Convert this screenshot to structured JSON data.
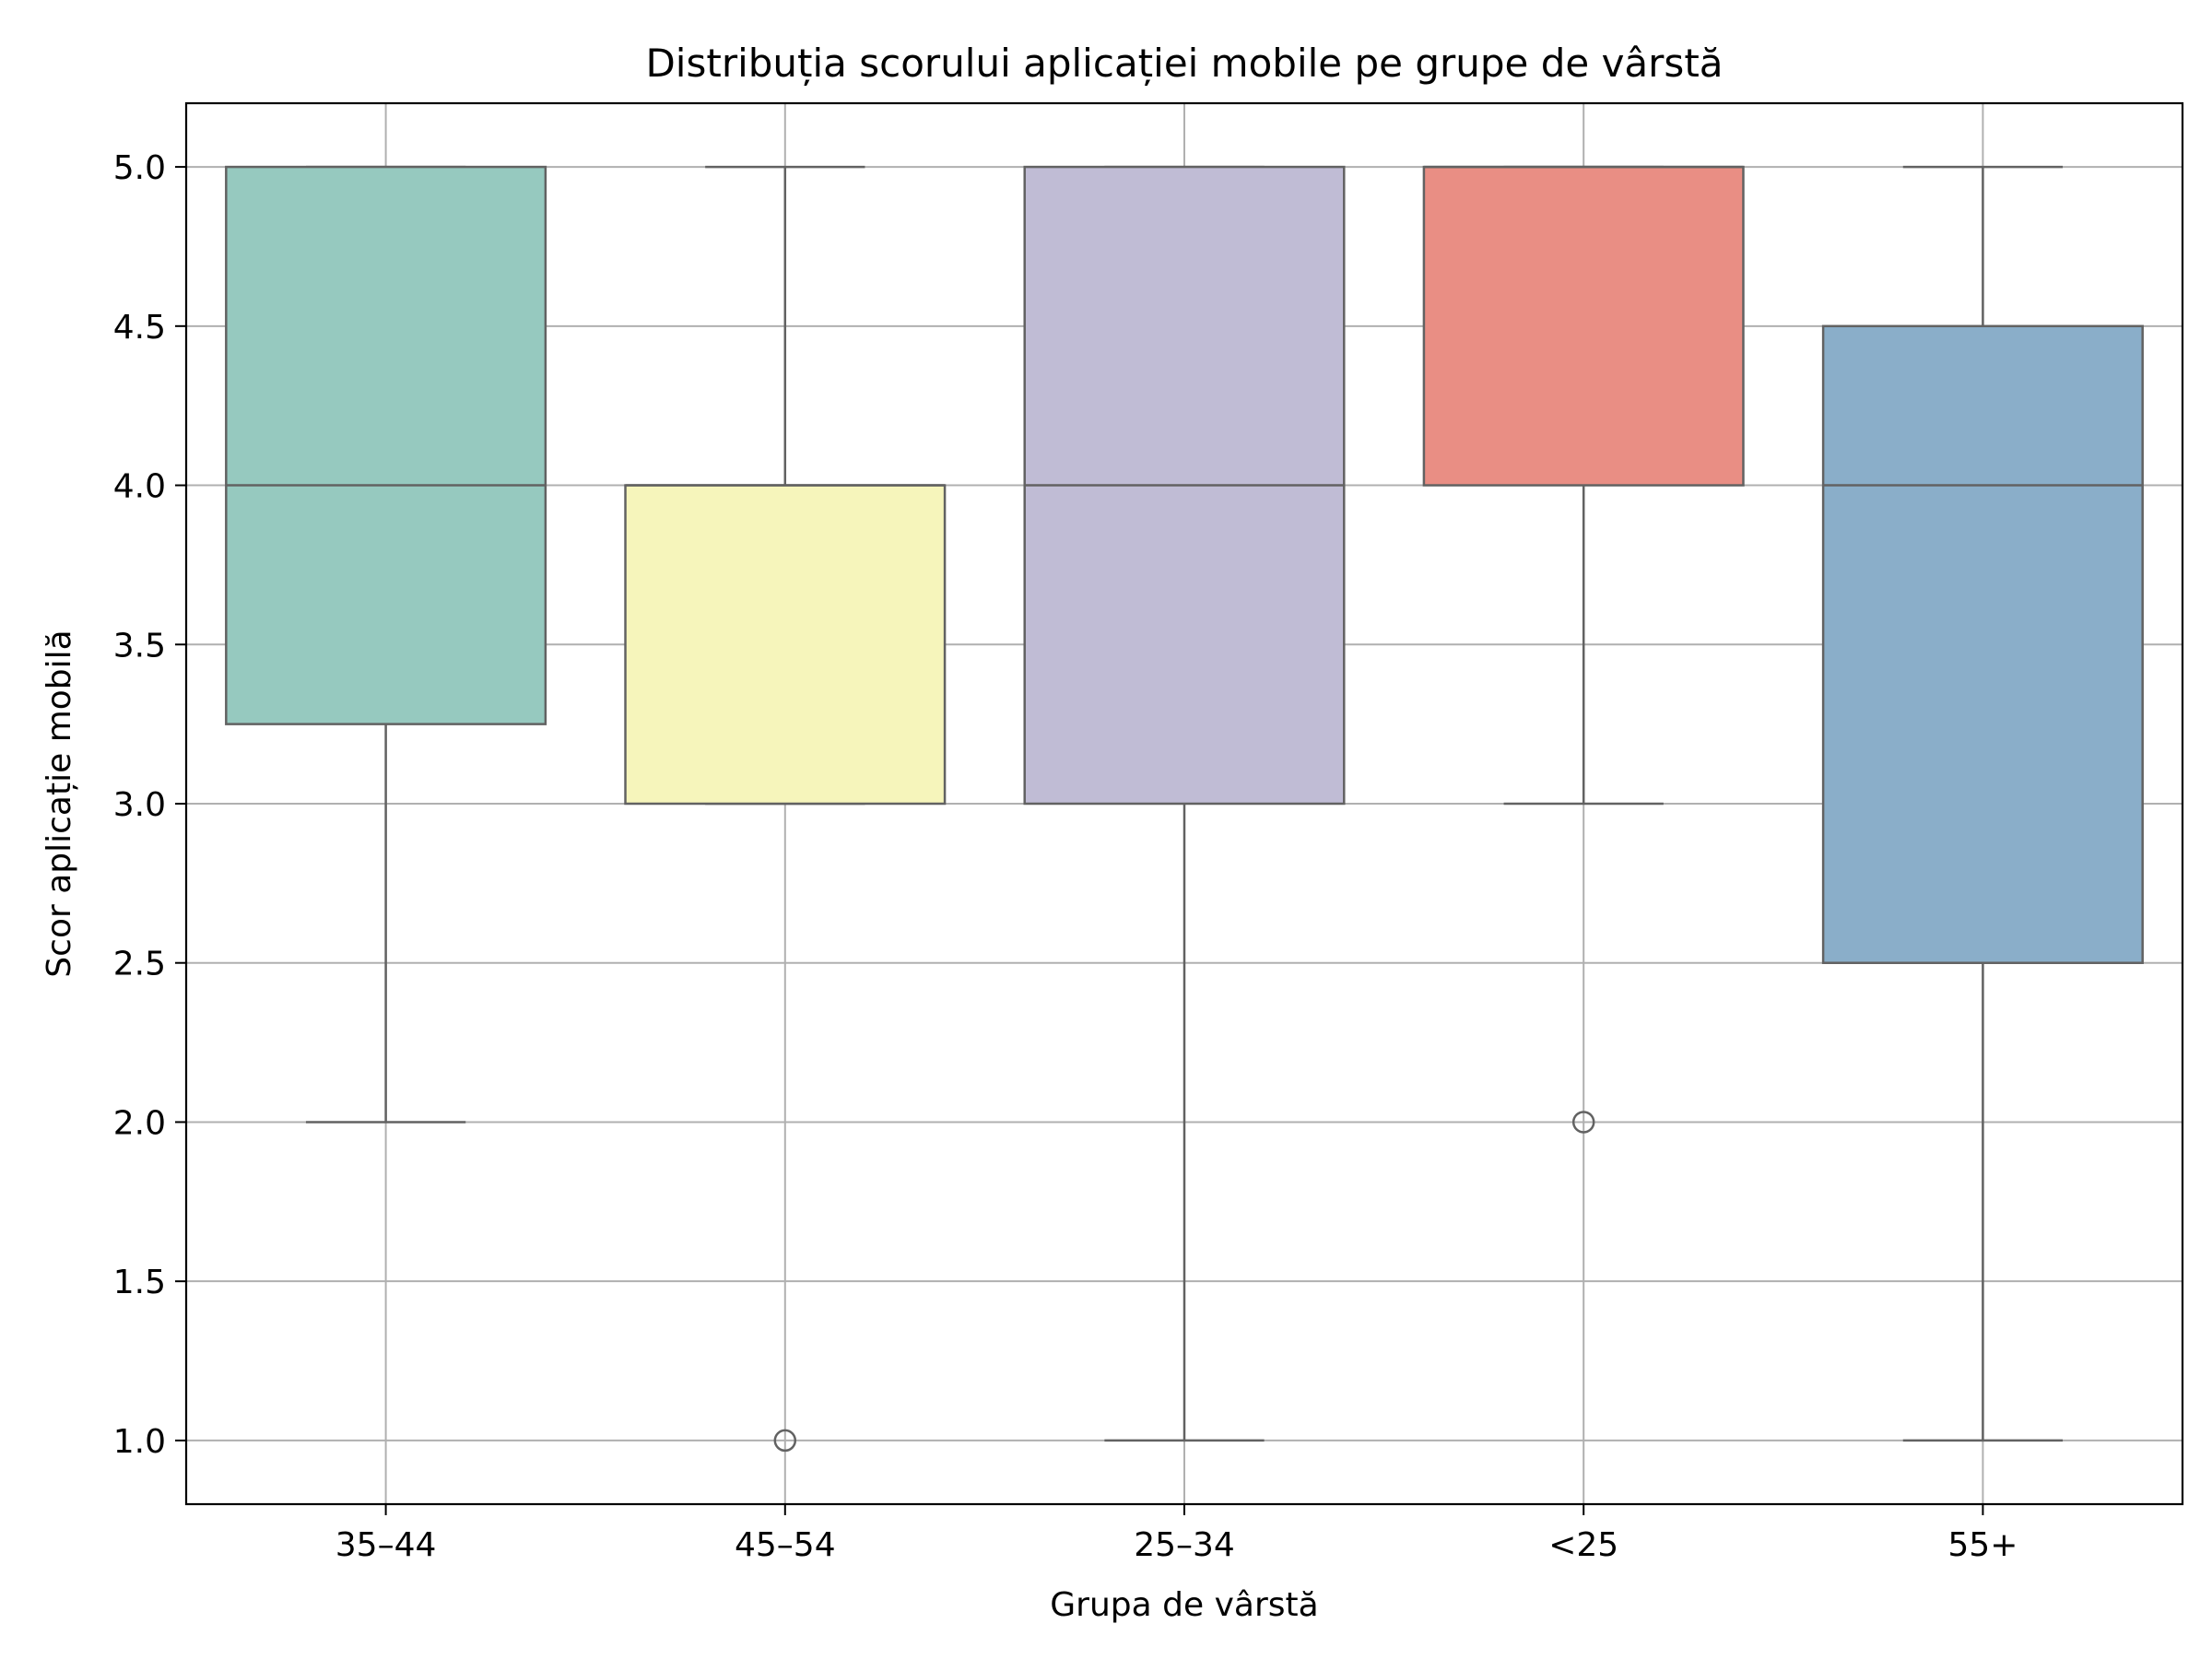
{
  "chart_data": {
    "type": "box",
    "title": "Distribuția scorului aplicației mobile pe grupe de vârstă",
    "xlabel": "Grupa de vârstă",
    "ylabel": "Scor aplicație mobilă",
    "ylim": [
      0.8,
      5.2
    ],
    "yticks": [
      "1.0",
      "1.5",
      "2.0",
      "2.5",
      "3.0",
      "3.5",
      "4.0",
      "4.5",
      "5.0"
    ],
    "grid": true,
    "categories": [
      "35–44",
      "45–54",
      "25–34",
      "<25",
      "55+"
    ],
    "boxes": [
      {
        "category": "35–44",
        "whisker_low": 2.0,
        "q1": 3.25,
        "median": 4.0,
        "q3": 5.0,
        "whisker_high": 5.0,
        "outliers": [],
        "color": "#96c9bf"
      },
      {
        "category": "45–54",
        "whisker_low": 3.0,
        "q1": 3.0,
        "median": 4.0,
        "q3": 4.0,
        "whisker_high": 5.0,
        "outliers": [
          1.0
        ],
        "color": "#f6f5bb"
      },
      {
        "category": "25–34",
        "whisker_low": 1.0,
        "q1": 3.0,
        "median": 4.0,
        "q3": 5.0,
        "whisker_high": 5.0,
        "outliers": [],
        "color": "#c0bcd5"
      },
      {
        "category": "<25",
        "whisker_low": 3.0,
        "q1": 4.0,
        "median": 5.0,
        "q3": 5.0,
        "whisker_high": 5.0,
        "outliers": [
          2.0
        ],
        "color": "#e98e84"
      },
      {
        "category": "55+",
        "whisker_low": 1.0,
        "q1": 2.5,
        "median": 4.0,
        "q3": 4.5,
        "whisker_high": 5.0,
        "outliers": [],
        "color": "#8aaec9"
      }
    ]
  }
}
